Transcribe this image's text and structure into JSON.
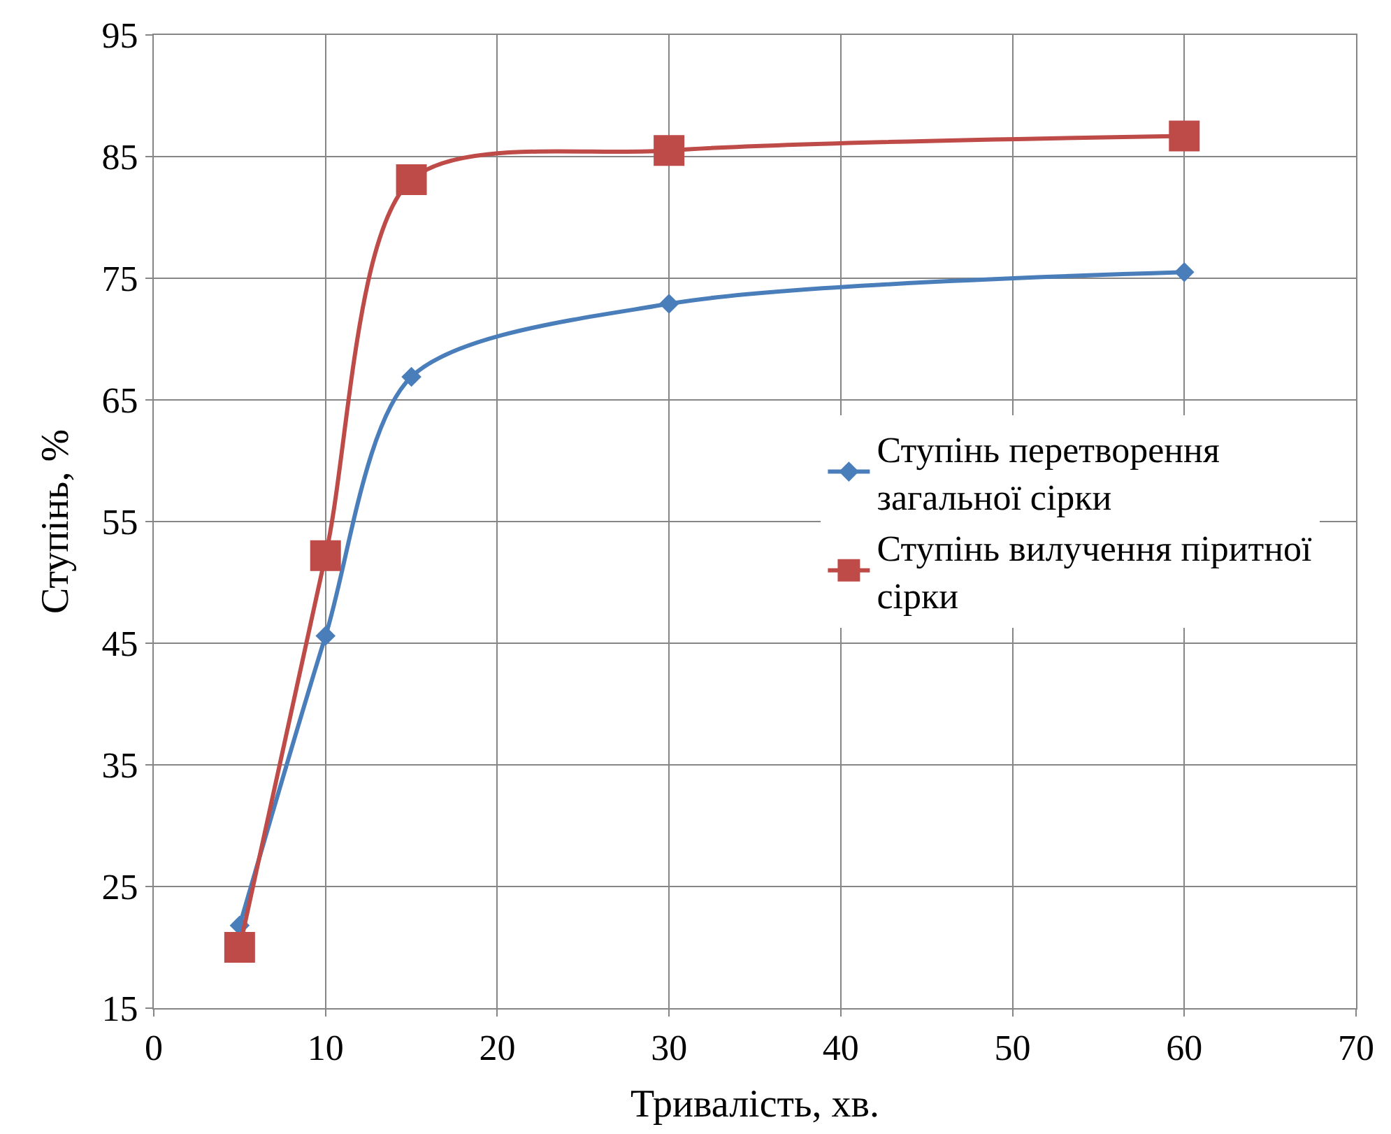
{
  "chart_data": {
    "type": "line",
    "xlabel": "Тривалість, хв.",
    "ylabel": "Ступінь, %",
    "xlim": [
      0,
      70
    ],
    "xticks": [
      0,
      10,
      20,
      30,
      40,
      50,
      60,
      70
    ],
    "ylim": [
      15,
      95
    ],
    "yticks": [
      15,
      25,
      35,
      45,
      55,
      65,
      75,
      85,
      95
    ],
    "grid": true,
    "legend": "right",
    "series": [
      {
        "name": "Ступінь перетворення загальної сірки",
        "color": "#4a7ebb",
        "marker": "diamond",
        "x": [
          5,
          10,
          15,
          30,
          60
        ],
        "values": [
          21.8,
          45.6,
          66.9,
          72.9,
          75.5
        ]
      },
      {
        "name": "Ступінь вилучення піритної сірки",
        "color": "#be4b48",
        "marker": "square",
        "x": [
          5,
          10,
          15,
          30,
          60
        ],
        "values": [
          20.0,
          52.2,
          83.1,
          85.5,
          86.7
        ]
      }
    ]
  }
}
